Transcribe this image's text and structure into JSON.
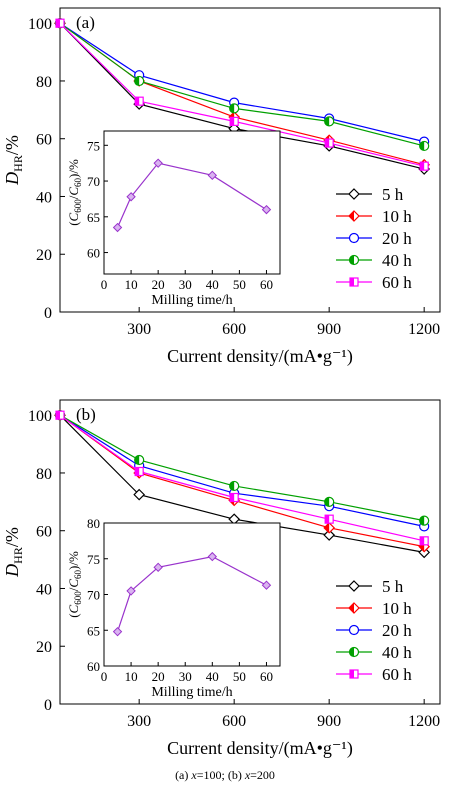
{
  "figure": {
    "caption_a_prefix": "(a) ",
    "caption_a_var": "x",
    "caption_a_eq": "=100; ",
    "caption_b_prefix": "(b) ",
    "caption_b_var": "x",
    "caption_b_eq": "=200"
  },
  "chart_data": [
    {
      "panel_label": "(a)",
      "type": "line",
      "xlabel": "Current density/(mA•g⁻¹)",
      "ylabel_main": "D",
      "ylabel_sub": "HR",
      "ylabel_unit": "/%",
      "x": [
        50,
        300,
        600,
        900,
        1200
      ],
      "xticks": [
        300,
        600,
        900,
        1200
      ],
      "xlim": [
        50,
        1250
      ],
      "ylim": [
        0,
        100
      ],
      "yticks": [
        0,
        20,
        40,
        60,
        80,
        100
      ],
      "series": [
        {
          "name": "5 h",
          "color": "#000000",
          "marker": "diamond-open",
          "values": [
            100,
            72,
            63.5,
            57.5,
            49.5
          ]
        },
        {
          "name": "10 h",
          "color": "#ff0000",
          "marker": "diamond-half",
          "values": [
            100,
            80,
            67.5,
            59.5,
            51
          ]
        },
        {
          "name": "20 h",
          "color": "#0000ff",
          "marker": "circle-open",
          "values": [
            100,
            82,
            72.5,
            67,
            59
          ]
        },
        {
          "name": "40 h",
          "color": "#00a000",
          "marker": "circle-half",
          "values": [
            100,
            80,
            70.5,
            66,
            57.5
          ]
        },
        {
          "name": "60 h",
          "color": "#ff00ff",
          "marker": "square-half",
          "values": [
            100,
            73,
            66,
            58.5,
            50.5
          ]
        }
      ],
      "inset": {
        "type": "line",
        "xlabel": "Milling time/h",
        "ylabel": "(C600/C60)/%",
        "ylabel_parts": [
          "(",
          "C",
          "600",
          "/",
          "C",
          "60",
          ")/%"
        ],
        "x": [
          5,
          10,
          20,
          40,
          60
        ],
        "values": [
          63.5,
          67.8,
          72.5,
          70.8,
          66
        ],
        "xticks": [
          0,
          10,
          20,
          30,
          40,
          50,
          60
        ],
        "yticks": [
          60,
          65,
          70,
          75
        ],
        "xlim": [
          0,
          65
        ],
        "ylim": [
          57,
          77
        ],
        "color": "#9933cc"
      }
    },
    {
      "panel_label": "(b)",
      "type": "line",
      "xlabel": "Current density/(mA•g⁻¹)",
      "ylabel_main": "D",
      "ylabel_sub": "HR",
      "ylabel_unit": "/%",
      "x": [
        50,
        300,
        600,
        900,
        1200
      ],
      "xticks": [
        300,
        600,
        900,
        1200
      ],
      "xlim": [
        50,
        1250
      ],
      "ylim": [
        0,
        100
      ],
      "yticks": [
        0,
        20,
        40,
        60,
        80,
        100
      ],
      "series": [
        {
          "name": "5 h",
          "color": "#000000",
          "marker": "diamond-open",
          "values": [
            100,
            72.5,
            64,
            58.5,
            52.5
          ]
        },
        {
          "name": "10 h",
          "color": "#ff0000",
          "marker": "diamond-half",
          "values": [
            100,
            80,
            70.5,
            61,
            54.5
          ]
        },
        {
          "name": "20 h",
          "color": "#0000ff",
          "marker": "circle-open",
          "values": [
            100,
            82.5,
            73,
            68.5,
            61.5
          ]
        },
        {
          "name": "40 h",
          "color": "#00a000",
          "marker": "circle-half",
          "values": [
            100,
            84.5,
            75.5,
            70,
            63.5
          ]
        },
        {
          "name": "60 h",
          "color": "#ff00ff",
          "marker": "square-half",
          "values": [
            100,
            80.5,
            71.5,
            64,
            56.5
          ]
        }
      ],
      "inset": {
        "type": "line",
        "xlabel": "Milling time/h",
        "ylabel": "(C600/C60)/%",
        "ylabel_parts": [
          "(",
          "C",
          "600",
          "/",
          "C",
          "60",
          ")/%"
        ],
        "x": [
          5,
          10,
          20,
          40,
          60
        ],
        "values": [
          64.8,
          70.5,
          73.8,
          75.3,
          71.3
        ],
        "xticks": [
          0,
          10,
          20,
          30,
          40,
          50,
          60
        ],
        "yticks": [
          60,
          65,
          70,
          75,
          80
        ],
        "xlim": [
          0,
          65
        ],
        "ylim": [
          60,
          80
        ],
        "color": "#9933cc"
      }
    }
  ]
}
